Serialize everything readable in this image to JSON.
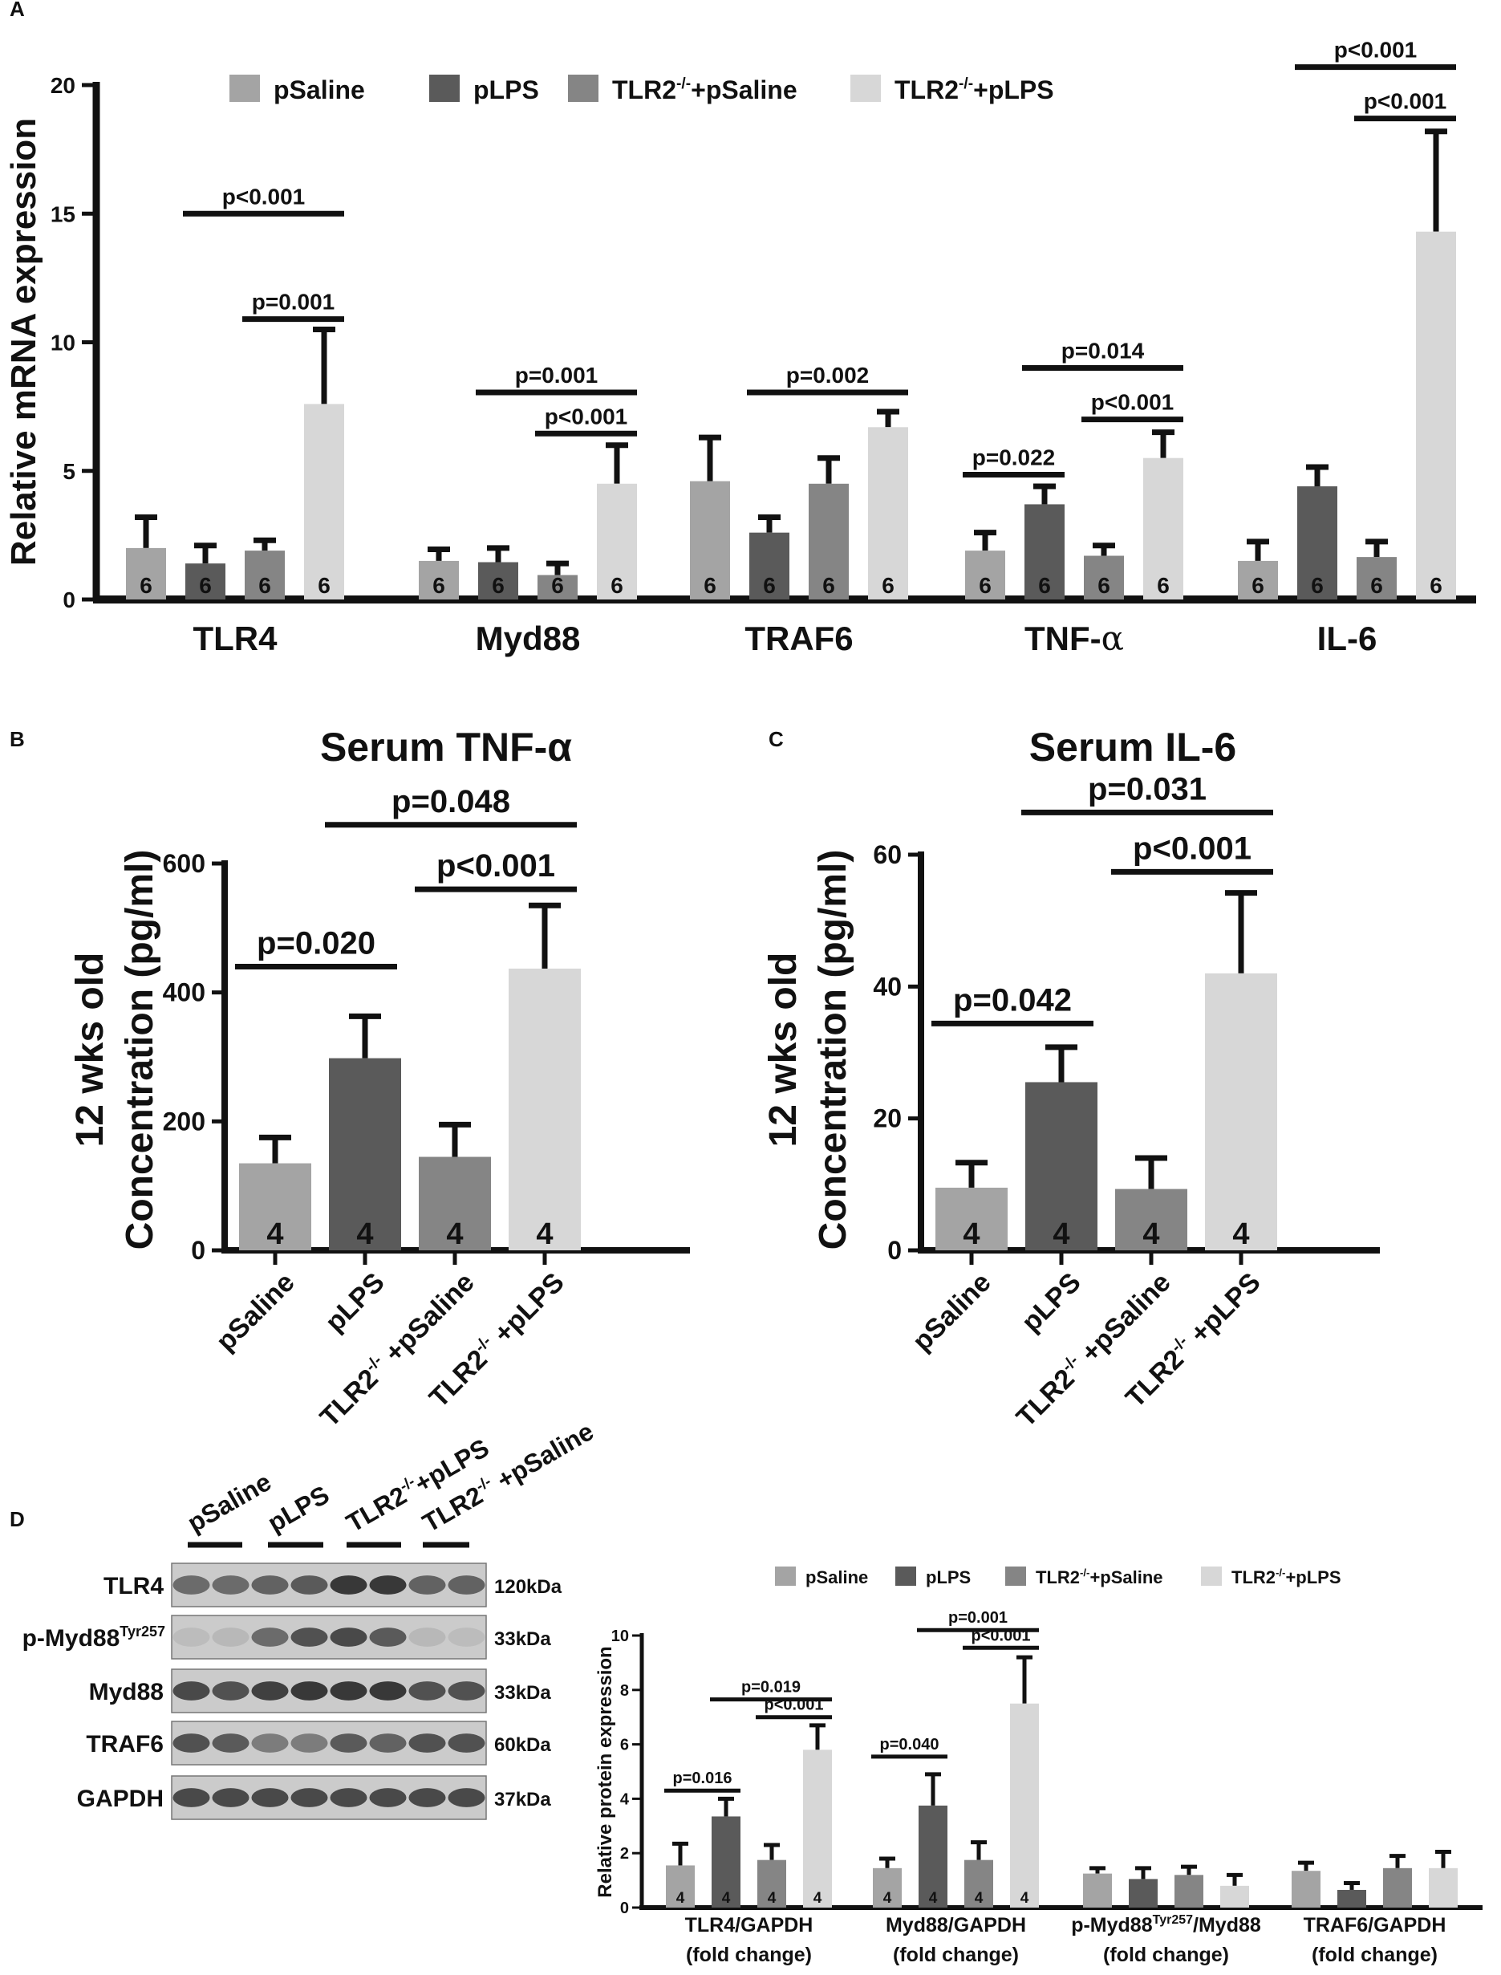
{
  "panel_labels": {
    "a": "A",
    "b": "B",
    "c": "C",
    "d": "D"
  },
  "colors": {
    "pSaline": "#a4a4a4",
    "pLPS": "#5a5a5a",
    "TLR2pSaline": "#858585",
    "TLR2pLPS": "#d7d7d7",
    "axis": "#111111"
  },
  "legend_a": [
    "pSaline",
    "pLPS",
    "TLR2-/-+pSaline",
    "TLR2-/-+pLPS"
  ],
  "legend_d": [
    "pSaline",
    "pLPS",
    "TLR2-/-+pSaline",
    "TLR2-/-+pLPS"
  ],
  "superscript": "-/-",
  "alpha": "α",
  "chart_data": [
    {
      "id": "A",
      "type": "bar",
      "ylabel": "Relative mRNA expression",
      "ylim": [
        0,
        20
      ],
      "yticks": [
        "0",
        "5",
        "10",
        "15",
        "20"
      ],
      "categories": [
        "TLR4",
        "Myd88",
        "TRAF6",
        "TNF-α",
        "IL-6"
      ],
      "series": [
        {
          "name": "pSaline",
          "values": [
            2.0,
            1.5,
            4.6,
            1.9,
            1.5
          ],
          "errors": [
            1.2,
            0.45,
            1.7,
            0.7,
            0.75
          ],
          "n": [
            "6",
            "6",
            "6",
            "6",
            "6"
          ]
        },
        {
          "name": "pLPS",
          "values": [
            1.4,
            1.45,
            2.6,
            3.7,
            4.4
          ],
          "errors": [
            0.7,
            0.55,
            0.6,
            0.7,
            0.75
          ],
          "n": [
            "6",
            "6",
            "6",
            "6",
            "6"
          ]
        },
        {
          "name": "TLR2-/-+pSaline",
          "values": [
            1.9,
            0.95,
            4.5,
            1.7,
            1.65
          ],
          "errors": [
            0.4,
            0.45,
            1.0,
            0.4,
            0.6
          ],
          "n": [
            "6",
            "6",
            "6",
            "6",
            "6"
          ]
        },
        {
          "name": "TLR2-/-+pLPS",
          "values": [
            7.6,
            4.5,
            6.7,
            5.5,
            14.3
          ],
          "errors": [
            2.9,
            1.5,
            0.6,
            1.0,
            3.9
          ],
          "n": [
            "6",
            "6",
            "6",
            "6",
            "6"
          ]
        }
      ],
      "annotations": [
        {
          "text": "p<0.001",
          "group": 0,
          "from": 1,
          "to": 3,
          "level": 15.0
        },
        {
          "text": "p=0.001",
          "group": 0,
          "from": 2,
          "to": 3,
          "level": 10.9
        },
        {
          "text": "p=0.001",
          "group": 1,
          "from": 1,
          "to": 3,
          "level": 8.05
        },
        {
          "text": "p<0.001",
          "group": 1,
          "from": 2,
          "to": 3,
          "level": 6.45
        },
        {
          "text": "p=0.002",
          "group": 2,
          "from": 1,
          "to": 3,
          "level": 8.05
        },
        {
          "text": "p=0.022",
          "group": 3,
          "from": 0,
          "to": 1,
          "level": 4.85
        },
        {
          "text": "p=0.014",
          "group": 3,
          "from": 1,
          "to": 3,
          "level": 9.0
        },
        {
          "text": "p<0.001",
          "group": 3,
          "from": 2,
          "to": 3,
          "level": 7.0
        },
        {
          "text": "p<0.001",
          "group": 4,
          "from": 1,
          "to": 3,
          "level": 20.7
        },
        {
          "text": "p<0.001",
          "group": 4,
          "from": 2,
          "to": 3,
          "level": 18.7
        }
      ]
    },
    {
      "id": "B",
      "type": "bar",
      "title": "Serum TNF-α",
      "ylabel": "Concentration (pg/ml)",
      "ylabel2": "12 wks old",
      "ylim": [
        0,
        600
      ],
      "yticks": [
        "0",
        "200",
        "400",
        "600"
      ],
      "categories": [
        "pSaline",
        "pLPS",
        "TLR2-/- +pSaline",
        "TLR2-/- +pLPS"
      ],
      "values": [
        135,
        298,
        145,
        437
      ],
      "errors": [
        40,
        65,
        50,
        98
      ],
      "n": [
        "4",
        "4",
        "4",
        "4"
      ],
      "annotations": [
        {
          "text": "p=0.020",
          "from": 0,
          "to": 1,
          "level": 440
        },
        {
          "text": "p=0.048",
          "from": 1,
          "to": 3,
          "level": 660
        },
        {
          "text": "p<0.001",
          "from": 2,
          "to": 3,
          "level": 560
        }
      ]
    },
    {
      "id": "C",
      "type": "bar",
      "title": "Serum IL-6",
      "ylabel": "Concentration (pg/ml)",
      "ylabel2": "12 wks old",
      "ylim": [
        0,
        60
      ],
      "yticks": [
        "0",
        "20",
        "40",
        "60"
      ],
      "categories": [
        "pSaline",
        "pLPS",
        "TLR2-/- +pSaline",
        "TLR2-/- +pLPS"
      ],
      "values": [
        9.5,
        25.5,
        9.3,
        42
      ],
      "errors": [
        3.8,
        5.3,
        4.7,
        12.2
      ],
      "n": [
        "4",
        "4",
        "4",
        "4"
      ],
      "annotations": [
        {
          "text": "p=0.042",
          "from": 0,
          "to": 1,
          "level": 34.4
        },
        {
          "text": "p=0.031",
          "from": 1,
          "to": 3,
          "level": 66.4
        },
        {
          "text": "p<0.001",
          "from": 2,
          "to": 3,
          "level": 57.4
        }
      ]
    },
    {
      "id": "D",
      "type": "bar",
      "ylabel": "Relative protein expression",
      "ylim": [
        0,
        10
      ],
      "yticks": [
        "0",
        "2",
        "4",
        "6",
        "8",
        "10"
      ],
      "categories": [
        "TLR4/GAPDH",
        "Myd88/GAPDH",
        "p-Myd88Tyr257/Myd88",
        "TRAF6/GAPDH"
      ],
      "category_sublabel": "(fold change)",
      "series": [
        {
          "name": "pSaline",
          "values": [
            1.55,
            1.45,
            1.25,
            1.35
          ],
          "errors": [
            0.8,
            0.35,
            0.2,
            0.3
          ],
          "n": [
            "4",
            "4",
            "",
            ""
          ]
        },
        {
          "name": "pLPS",
          "values": [
            3.35,
            3.75,
            1.05,
            0.65
          ],
          "errors": [
            0.65,
            1.15,
            0.4,
            0.25
          ],
          "n": [
            "4",
            "4",
            "",
            ""
          ]
        },
        {
          "name": "TLR2-/-+pSaline",
          "values": [
            1.75,
            1.75,
            1.2,
            1.45
          ],
          "errors": [
            0.55,
            0.65,
            0.3,
            0.45
          ],
          "n": [
            "4",
            "4",
            "",
            ""
          ]
        },
        {
          "name": "TLR2-/-+pLPS",
          "values": [
            5.8,
            7.5,
            0.8,
            1.45
          ],
          "errors": [
            0.9,
            1.7,
            0.4,
            0.6
          ],
          "n": [
            "4",
            "4",
            "",
            ""
          ]
        }
      ],
      "annotations": [
        {
          "text": "p=0.016",
          "group": 0,
          "from": 0,
          "to": 1,
          "level": 4.3
        },
        {
          "text": "p=0.019",
          "group": 0,
          "from": 1,
          "to": 3,
          "level": 7.65
        },
        {
          "text": "p<0.001",
          "group": 0,
          "from": 2,
          "to": 3,
          "level": 7.0
        },
        {
          "text": "p=0.040",
          "group": 1,
          "from": 0,
          "to": 1,
          "level": 5.55
        },
        {
          "text": "p=0.001",
          "group": 1,
          "from": 1,
          "to": 3,
          "level": 10.2
        },
        {
          "text": "p<0.001",
          "group": 1,
          "from": 2,
          "to": 3,
          "level": 9.55
        }
      ]
    }
  ],
  "blot": {
    "groups": [
      "pSaline",
      "pLPS",
      "TLR2-/-+pLPS",
      "TLR2-/- +pSaline"
    ],
    "rows": [
      {
        "name": "TLR4",
        "size": "120kDa",
        "intensity": [
          0.55,
          0.55,
          0.6,
          0.65,
          0.85,
          0.85,
          0.6,
          0.6
        ]
      },
      {
        "name": "p-Myd88",
        "sup": "Tyr257",
        "size": "33kDa",
        "intensity": [
          0.08,
          0.1,
          0.55,
          0.7,
          0.75,
          0.65,
          0.1,
          0.08
        ]
      },
      {
        "name": "Myd88",
        "size": "33kDa",
        "intensity": [
          0.75,
          0.7,
          0.8,
          0.85,
          0.85,
          0.85,
          0.7,
          0.7
        ]
      },
      {
        "name": "TRAF6",
        "size": "60kDa",
        "intensity": [
          0.7,
          0.65,
          0.45,
          0.45,
          0.65,
          0.6,
          0.7,
          0.7
        ]
      },
      {
        "name": "GAPDH",
        "size": "37kDa",
        "intensity": [
          0.75,
          0.75,
          0.75,
          0.75,
          0.75,
          0.75,
          0.75,
          0.75
        ]
      }
    ]
  }
}
